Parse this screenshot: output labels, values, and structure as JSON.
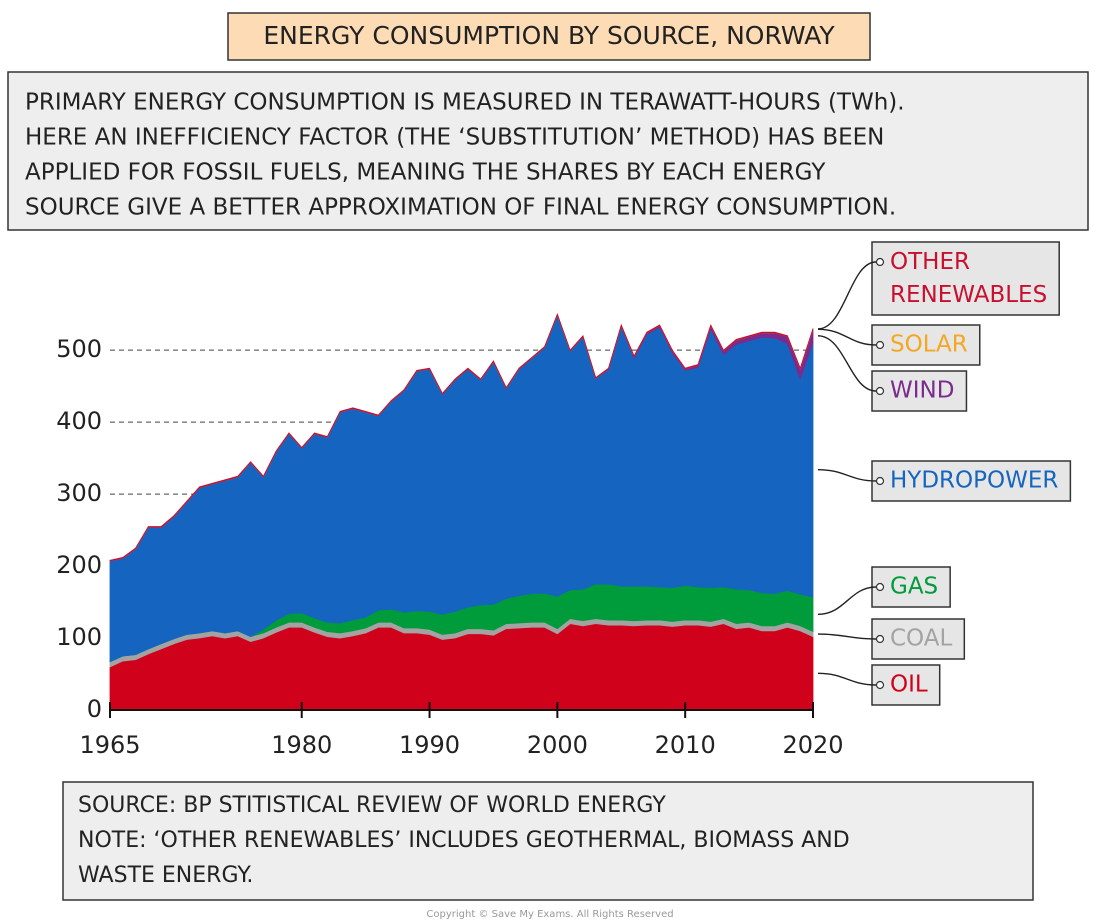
{
  "chart_data": {
    "type": "stacked-area",
    "title": "ENERGY CONSUMPTION BY SOURCE, NORWAY",
    "description": [
      "PRIMARY ENERGY CONSUMPTION IS MEASURED IN TERAWATT-HOURS (TWh).",
      "HERE AN INEFFICIENCY FACTOR (THE ‘SUBSTITUTION’ METHOD) HAS BEEN",
      "APPLIED FOR FOSSIL FUELS, MEANING THE SHARES BY EACH ENERGY",
      "SOURCE GIVE A BETTER APPROXIMATION OF FINAL ENERGY CONSUMPTION."
    ],
    "notes": [
      "SOURCE: BP STITISTICAL REVIEW OF WORLD ENERGY",
      "NOTE: ‘OTHER RENEWABLES’ INCLUDES GEOTHERMAL, BIOMASS AND",
      "WASTE ENERGY."
    ],
    "copyright": "Copyright © Save My Exams. All Rights Reserved",
    "x": [
      1965,
      1966,
      1967,
      1968,
      1969,
      1970,
      1971,
      1972,
      1973,
      1974,
      1975,
      1976,
      1977,
      1978,
      1979,
      1980,
      1981,
      1982,
      1983,
      1984,
      1985,
      1986,
      1987,
      1988,
      1989,
      1990,
      1991,
      1992,
      1993,
      1994,
      1995,
      1996,
      1997,
      1998,
      1999,
      2000,
      2001,
      2002,
      2003,
      2004,
      2005,
      2006,
      2007,
      2008,
      2009,
      2010,
      2011,
      2012,
      2013,
      2014,
      2015,
      2016,
      2017,
      2018,
      2019,
      2020
    ],
    "xlim": [
      1965,
      2020
    ],
    "xticks": [
      1965,
      1980,
      1990,
      2000,
      2010,
      2020
    ],
    "ylim": [
      0,
      560
    ],
    "yticks": [
      0,
      100,
      200,
      300,
      400,
      500
    ],
    "grid": true,
    "series": [
      {
        "name": "OIL",
        "color": "#d0021b",
        "values": [
          60,
          68,
          70,
          78,
          85,
          92,
          98,
          100,
          103,
          100,
          103,
          95,
          100,
          108,
          115,
          115,
          108,
          102,
          100,
          103,
          107,
          115,
          115,
          107,
          107,
          105,
          98,
          100,
          106,
          106,
          104,
          113,
          114,
          115,
          115,
          106,
          120,
          117,
          120,
          118,
          118,
          117,
          118,
          118,
          116,
          118,
          118,
          116,
          120,
          113,
          115,
          110,
          110,
          115,
          110,
          102
        ]
      },
      {
        "name": "COAL",
        "color": "#a3a3a3",
        "values": [
          7,
          7,
          7,
          7,
          7,
          7,
          7,
          7,
          7,
          7,
          7,
          7,
          7,
          7,
          7,
          7,
          7,
          7,
          7,
          7,
          7,
          7,
          7,
          7,
          7,
          7,
          7,
          7,
          7,
          7,
          7,
          7,
          7,
          7,
          7,
          7,
          7,
          7,
          7,
          7,
          7,
          7,
          7,
          7,
          7,
          7,
          7,
          7,
          7,
          7,
          7,
          7,
          7,
          7,
          7,
          7
        ]
      },
      {
        "name": "GAS",
        "color": "#009b3a",
        "values": [
          0,
          0,
          0,
          0,
          0,
          0,
          0,
          0,
          0,
          0,
          0,
          0,
          5,
          10,
          12,
          13,
          13,
          13,
          14,
          15,
          15,
          17,
          18,
          22,
          24,
          25,
          28,
          30,
          30,
          33,
          36,
          35,
          38,
          40,
          40,
          45,
          40,
          44,
          48,
          50,
          47,
          48,
          47,
          46,
          47,
          48,
          46,
          47,
          44,
          48,
          45,
          46,
          45,
          44,
          44,
          48
        ]
      },
      {
        "name": "HYDROPOWER",
        "color": "#1565c0",
        "values": [
          140,
          136,
          147,
          169,
          162,
          170,
          184,
          202,
          204,
          212,
          214,
          242,
          212,
          234,
          250,
          229,
          256,
          257,
          293,
          294,
          285,
          270,
          289,
          308,
          333,
          337,
          306,
          322,
          331,
          313,
          337,
          292,
          315,
          327,
          342,
          391,
          332,
          351,
          286,
          298,
          361,
          317,
          350,
          361,
          326,
          299,
          305,
          360,
          323,
          340,
          346,
          355,
          355,
          343,
          299,
          354
        ]
      },
      {
        "name": "WIND",
        "color": "#7b2a8e",
        "values": [
          0,
          0,
          0,
          0,
          0,
          0,
          0,
          0,
          0,
          0,
          0,
          0,
          0,
          0,
          0,
          0,
          0,
          0,
          0,
          0,
          0,
          0,
          0,
          0,
          0,
          0,
          0,
          0,
          0,
          0,
          0,
          0,
          0,
          0,
          0,
          0,
          0,
          0,
          0,
          1,
          1,
          2,
          2,
          2,
          3,
          2,
          3,
          4,
          5,
          6,
          6,
          6,
          7,
          10,
          14,
          18
        ]
      },
      {
        "name": "SOLAR",
        "color": "#f5a623",
        "values": [
          0,
          0,
          0,
          0,
          0,
          0,
          0,
          0,
          0,
          0,
          0,
          0,
          0,
          0,
          0,
          0,
          0,
          0,
          0,
          0,
          0,
          0,
          0,
          0,
          0,
          0,
          0,
          0,
          0,
          0,
          0,
          0,
          0,
          0,
          0,
          0,
          0,
          0,
          0,
          0,
          0,
          0,
          0,
          0,
          0,
          0,
          0,
          0,
          0,
          0.1,
          0.1,
          0.1,
          0.1,
          0.1,
          0.1,
          0.1
        ]
      },
      {
        "name": "OTHER RENEWABLES",
        "color": "#c8102e",
        "values": [
          1,
          1,
          1,
          1,
          1,
          1,
          1,
          1,
          1,
          1,
          1,
          1,
          1,
          1,
          1,
          1,
          1,
          1,
          1,
          1,
          1,
          1,
          1,
          1,
          1,
          1,
          1,
          1,
          1,
          1,
          1,
          1,
          1,
          1,
          1,
          1,
          1,
          1,
          1,
          1,
          1,
          1,
          1,
          1,
          1,
          1,
          1,
          1,
          1,
          1,
          1,
          1,
          1,
          1,
          1,
          1
        ]
      }
    ]
  }
}
